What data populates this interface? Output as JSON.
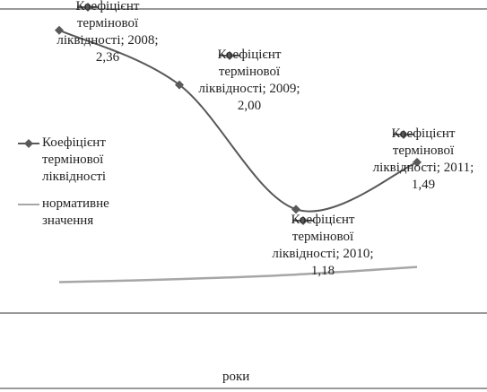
{
  "chart_data": {
    "type": "line",
    "x_label": "роки",
    "ylim": [
      0,
      2.5
    ],
    "series": [
      {
        "name": "Коефіцієнт термінової ліквідності",
        "color": "#595959",
        "marker": "diamond",
        "values": [
          2.36,
          2.0,
          1.18,
          1.49
        ],
        "value_labels": [
          "Коефіцієнт термінової ліквідності; 2008; 2,36",
          "Коефіцієнт термінової ліквідності; 2009; 2,00",
          "Коефіцієнт термінової ліквідності; 2010; 1,18",
          "Коефіцієнт термінової ліквідності; 2011; 1,49"
        ]
      },
      {
        "name": "нормативне значення",
        "color": "#a6a6a6",
        "values": [
          0.7,
          0.72,
          0.75,
          0.8
        ]
      }
    ]
  }
}
